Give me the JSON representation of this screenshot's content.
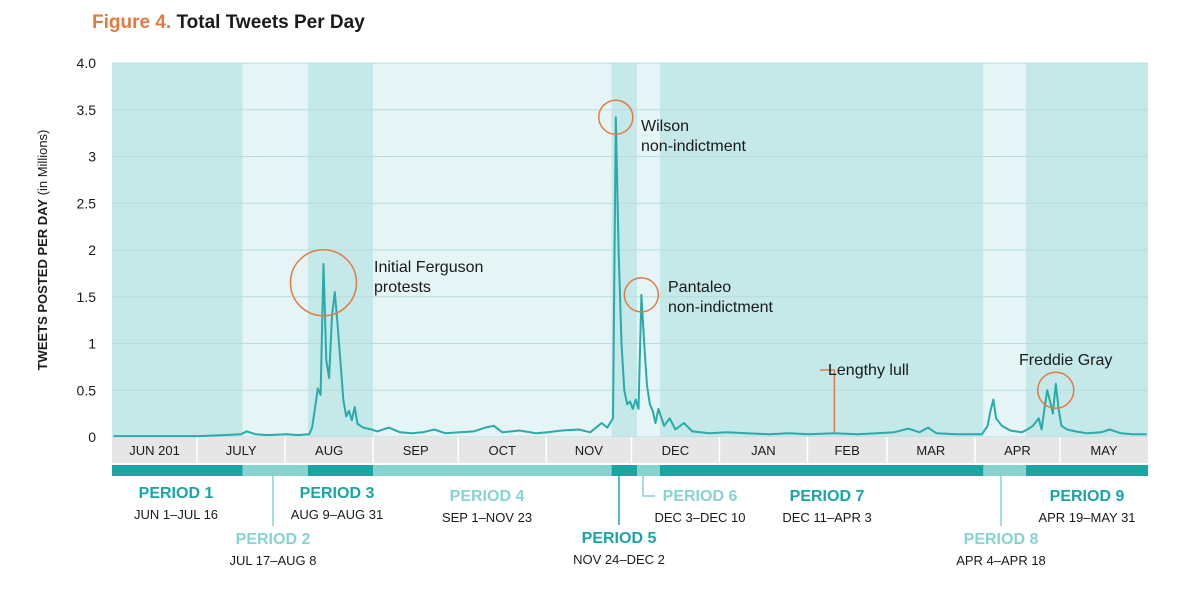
{
  "figure": {
    "label": "Figure 4.",
    "title": "Total Tweets Per Day"
  },
  "colors": {
    "teal": "#2aaaa8",
    "teal_dark": "#1aa5a3",
    "teal_light": "#86d3d0",
    "band_dark": "#c5e8e9",
    "band_light": "#e5f4f5",
    "annotation_circle": "#e07b45",
    "text": "#1a1a1a"
  },
  "chart_data": {
    "type": "line",
    "title": "Total Tweets Per Day",
    "xlabel": "",
    "ylabel_bold": "TWEETS POSTED PER DAY",
    "ylabel_rest": " (in Millions)",
    "ylim": [
      0,
      4
    ],
    "yticks": [
      "0",
      "0.5",
      "1",
      "1.5",
      "2",
      "2.5",
      "3",
      "3.5",
      "4.0"
    ],
    "month_labels": [
      "JUN 201",
      "JULY",
      "AUG",
      "SEP",
      "OCT",
      "NOV",
      "DEC",
      "JAN",
      "FEB",
      "MAR",
      "APR",
      "MAY"
    ],
    "x_range": [
      "2014-06-01",
      "2015-05-31"
    ],
    "series": [
      {
        "points": [
          [
            "2014-06-01",
            0.01
          ],
          [
            "2014-07-01",
            0.01
          ],
          [
            "2014-07-10",
            0.02
          ],
          [
            "2014-07-16",
            0.03
          ],
          [
            "2014-07-18",
            0.06
          ],
          [
            "2014-07-21",
            0.03
          ],
          [
            "2014-07-25",
            0.02
          ],
          [
            "2014-08-01",
            0.03
          ],
          [
            "2014-08-05",
            0.02
          ],
          [
            "2014-08-09",
            0.03
          ],
          [
            "2014-08-10",
            0.1
          ],
          [
            "2014-08-11",
            0.3
          ],
          [
            "2014-08-12",
            0.52
          ],
          [
            "2014-08-13",
            0.45
          ],
          [
            "2014-08-14",
            1.85
          ],
          [
            "2014-08-15",
            0.82
          ],
          [
            "2014-08-16",
            0.63
          ],
          [
            "2014-08-17",
            1.3
          ],
          [
            "2014-08-18",
            1.55
          ],
          [
            "2014-08-19",
            1.2
          ],
          [
            "2014-08-20",
            0.8
          ],
          [
            "2014-08-21",
            0.4
          ],
          [
            "2014-08-22",
            0.22
          ],
          [
            "2014-08-23",
            0.28
          ],
          [
            "2014-08-24",
            0.18
          ],
          [
            "2014-08-25",
            0.32
          ],
          [
            "2014-08-26",
            0.14
          ],
          [
            "2014-08-28",
            0.1
          ],
          [
            "2014-08-31",
            0.08
          ],
          [
            "2014-09-02",
            0.06
          ],
          [
            "2014-09-06",
            0.1
          ],
          [
            "2014-09-10",
            0.05
          ],
          [
            "2014-09-14",
            0.04
          ],
          [
            "2014-09-18",
            0.05
          ],
          [
            "2014-09-22",
            0.08
          ],
          [
            "2014-09-26",
            0.04
          ],
          [
            "2014-10-01",
            0.05
          ],
          [
            "2014-10-06",
            0.06
          ],
          [
            "2014-10-10",
            0.1
          ],
          [
            "2014-10-13",
            0.12
          ],
          [
            "2014-10-16",
            0.05
          ],
          [
            "2014-10-22",
            0.07
          ],
          [
            "2014-10-28",
            0.04
          ],
          [
            "2014-11-01",
            0.05
          ],
          [
            "2014-11-06",
            0.07
          ],
          [
            "2014-11-12",
            0.08
          ],
          [
            "2014-11-16",
            0.05
          ],
          [
            "2014-11-20",
            0.15
          ],
          [
            "2014-11-22",
            0.1
          ],
          [
            "2014-11-24",
            0.2
          ],
          [
            "2014-11-25",
            3.42
          ],
          [
            "2014-11-26",
            2.0
          ],
          [
            "2014-11-27",
            1.0
          ],
          [
            "2014-11-28",
            0.5
          ],
          [
            "2014-11-29",
            0.35
          ],
          [
            "2014-11-30",
            0.38
          ],
          [
            "2014-12-01",
            0.3
          ],
          [
            "2014-12-02",
            0.4
          ],
          [
            "2014-12-03",
            0.3
          ],
          [
            "2014-12-04",
            1.52
          ],
          [
            "2014-12-05",
            1.0
          ],
          [
            "2014-12-06",
            0.55
          ],
          [
            "2014-12-07",
            0.35
          ],
          [
            "2014-12-08",
            0.28
          ],
          [
            "2014-12-09",
            0.15
          ],
          [
            "2014-12-10",
            0.3
          ],
          [
            "2014-12-12",
            0.12
          ],
          [
            "2014-12-14",
            0.2
          ],
          [
            "2014-12-16",
            0.08
          ],
          [
            "2014-12-19",
            0.15
          ],
          [
            "2014-12-22",
            0.06
          ],
          [
            "2014-12-28",
            0.04
          ],
          [
            "2015-01-03",
            0.05
          ],
          [
            "2015-01-10",
            0.04
          ],
          [
            "2015-01-18",
            0.03
          ],
          [
            "2015-01-25",
            0.04
          ],
          [
            "2015-02-01",
            0.03
          ],
          [
            "2015-02-10",
            0.04
          ],
          [
            "2015-02-18",
            0.03
          ],
          [
            "2015-02-25",
            0.04
          ],
          [
            "2015-03-03",
            0.05
          ],
          [
            "2015-03-08",
            0.09
          ],
          [
            "2015-03-12",
            0.05
          ],
          [
            "2015-03-15",
            0.1
          ],
          [
            "2015-03-18",
            0.04
          ],
          [
            "2015-03-25",
            0.03
          ],
          [
            "2015-04-03",
            0.03
          ],
          [
            "2015-04-05",
            0.12
          ],
          [
            "2015-04-06",
            0.28
          ],
          [
            "2015-04-07",
            0.4
          ],
          [
            "2015-04-08",
            0.2
          ],
          [
            "2015-04-10",
            0.12
          ],
          [
            "2015-04-13",
            0.07
          ],
          [
            "2015-04-17",
            0.05
          ],
          [
            "2015-04-19",
            0.08
          ],
          [
            "2015-04-21",
            0.12
          ],
          [
            "2015-04-23",
            0.2
          ],
          [
            "2015-04-24",
            0.08
          ],
          [
            "2015-04-25",
            0.3
          ],
          [
            "2015-04-26",
            0.5
          ],
          [
            "2015-04-27",
            0.38
          ],
          [
            "2015-04-28",
            0.25
          ],
          [
            "2015-04-29",
            0.57
          ],
          [
            "2015-04-30",
            0.3
          ],
          [
            "2015-05-01",
            0.12
          ],
          [
            "2015-05-03",
            0.08
          ],
          [
            "2015-05-06",
            0.06
          ],
          [
            "2015-05-10",
            0.04
          ],
          [
            "2015-05-15",
            0.05
          ],
          [
            "2015-05-18",
            0.08
          ],
          [
            "2015-05-22",
            0.04
          ],
          [
            "2015-05-26",
            0.03
          ],
          [
            "2015-05-31",
            0.03
          ]
        ]
      }
    ],
    "periods": [
      {
        "name": "PERIOD 1",
        "range": "JUN 1–JUL 16",
        "start": "2014-06-01",
        "end": "2014-07-16",
        "shade": "dark",
        "color": "dark",
        "row": "top"
      },
      {
        "name": "PERIOD 2",
        "range": "JUL 17–AUG 8",
        "start": "2014-07-17",
        "end": "2014-08-08",
        "shade": "light",
        "color": "light",
        "row": "bottom"
      },
      {
        "name": "PERIOD 3",
        "range": "AUG 9–AUG 31",
        "start": "2014-08-09",
        "end": "2014-08-31",
        "shade": "dark",
        "color": "dark",
        "row": "top"
      },
      {
        "name": "PERIOD 4",
        "range": "SEP 1–NOV 23",
        "start": "2014-09-01",
        "end": "2014-11-23",
        "shade": "light",
        "color": "light",
        "row": "top"
      },
      {
        "name": "PERIOD 5",
        "range": "NOV 24–DEC 2",
        "start": "2014-11-24",
        "end": "2014-12-02",
        "shade": "dark",
        "color": "dark",
        "row": "bottom"
      },
      {
        "name": "PERIOD 6",
        "range": "DEC 3–DEC 10",
        "start": "2014-12-03",
        "end": "2014-12-10",
        "shade": "light",
        "color": "light",
        "row": "top"
      },
      {
        "name": "PERIOD 7",
        "range": "DEC 11–APR 3",
        "start": "2014-12-11",
        "end": "2015-04-03",
        "shade": "dark",
        "color": "dark",
        "row": "top"
      },
      {
        "name": "PERIOD 8",
        "range": "APR 4–APR 18",
        "start": "2015-04-04",
        "end": "2015-04-18",
        "shade": "light",
        "color": "light",
        "row": "bottom"
      },
      {
        "name": "PERIOD 9",
        "range": "APR 19–MAY 31",
        "start": "2015-04-19",
        "end": "2015-05-31",
        "shade": "dark",
        "color": "dark",
        "row": "top"
      }
    ],
    "annotations": [
      {
        "lines": [
          "Initial Ferguson",
          "protests"
        ],
        "date": "2014-08-14",
        "y": 1.65
      },
      {
        "lines": [
          "Wilson",
          "non-indictment"
        ],
        "date": "2014-11-25",
        "y": 3.42
      },
      {
        "lines": [
          "Pantaleo",
          "non-indictment"
        ],
        "date": "2014-12-04",
        "y": 1.52
      },
      {
        "lines": [
          "Lengthy lull"
        ],
        "date": "2015-02-10",
        "y": 0.05
      },
      {
        "lines": [
          "Freddie Gray"
        ],
        "date": "2015-04-29",
        "y": 0.5
      }
    ]
  }
}
